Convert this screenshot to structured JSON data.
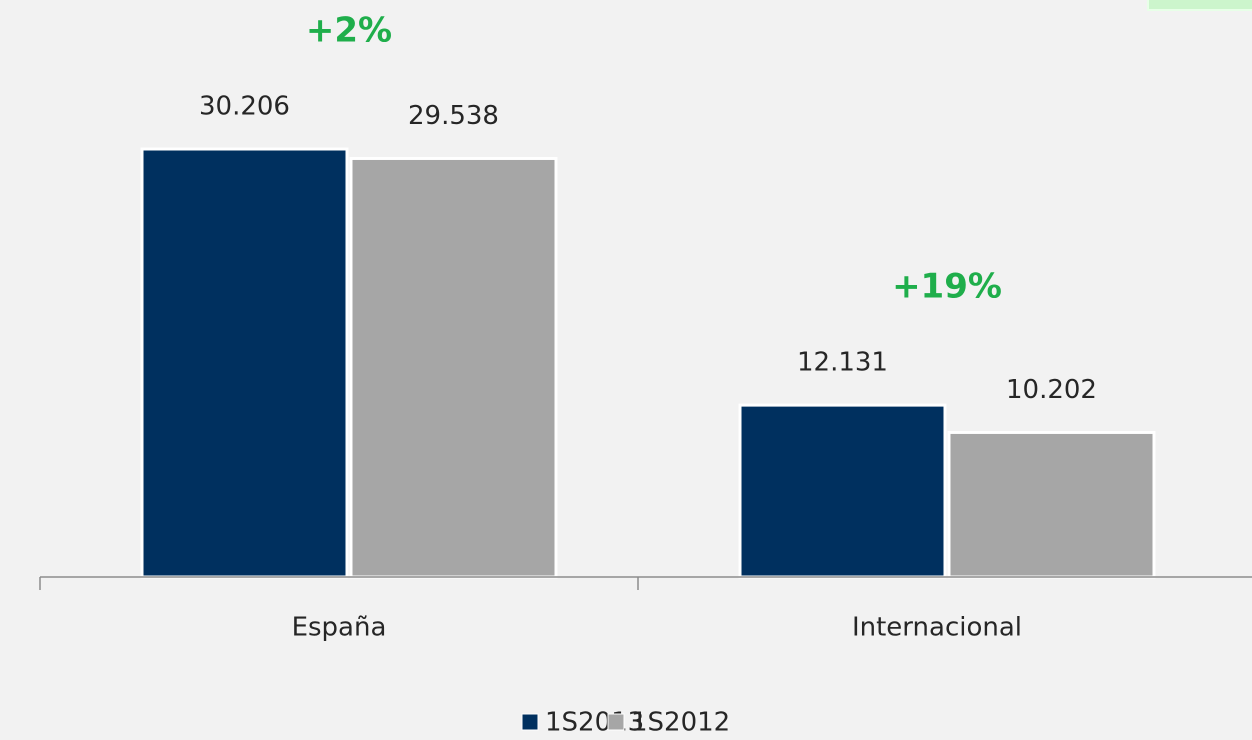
{
  "chart_data": {
    "type": "bar",
    "categories": [
      "España",
      "Internacional"
    ],
    "series": [
      {
        "name": "1S2013",
        "color": "#00305f",
        "values": [
          30206,
          12131
        ],
        "value_labels": [
          "30.206",
          "12.131"
        ]
      },
      {
        "name": "1S2012",
        "color": "#a6a6a6",
        "values": [
          29538,
          10202
        ],
        "value_labels": [
          "29.538",
          "10.202"
        ]
      }
    ],
    "annotations": [
      "+2%",
      "+19%"
    ],
    "legend": "bottom"
  }
}
